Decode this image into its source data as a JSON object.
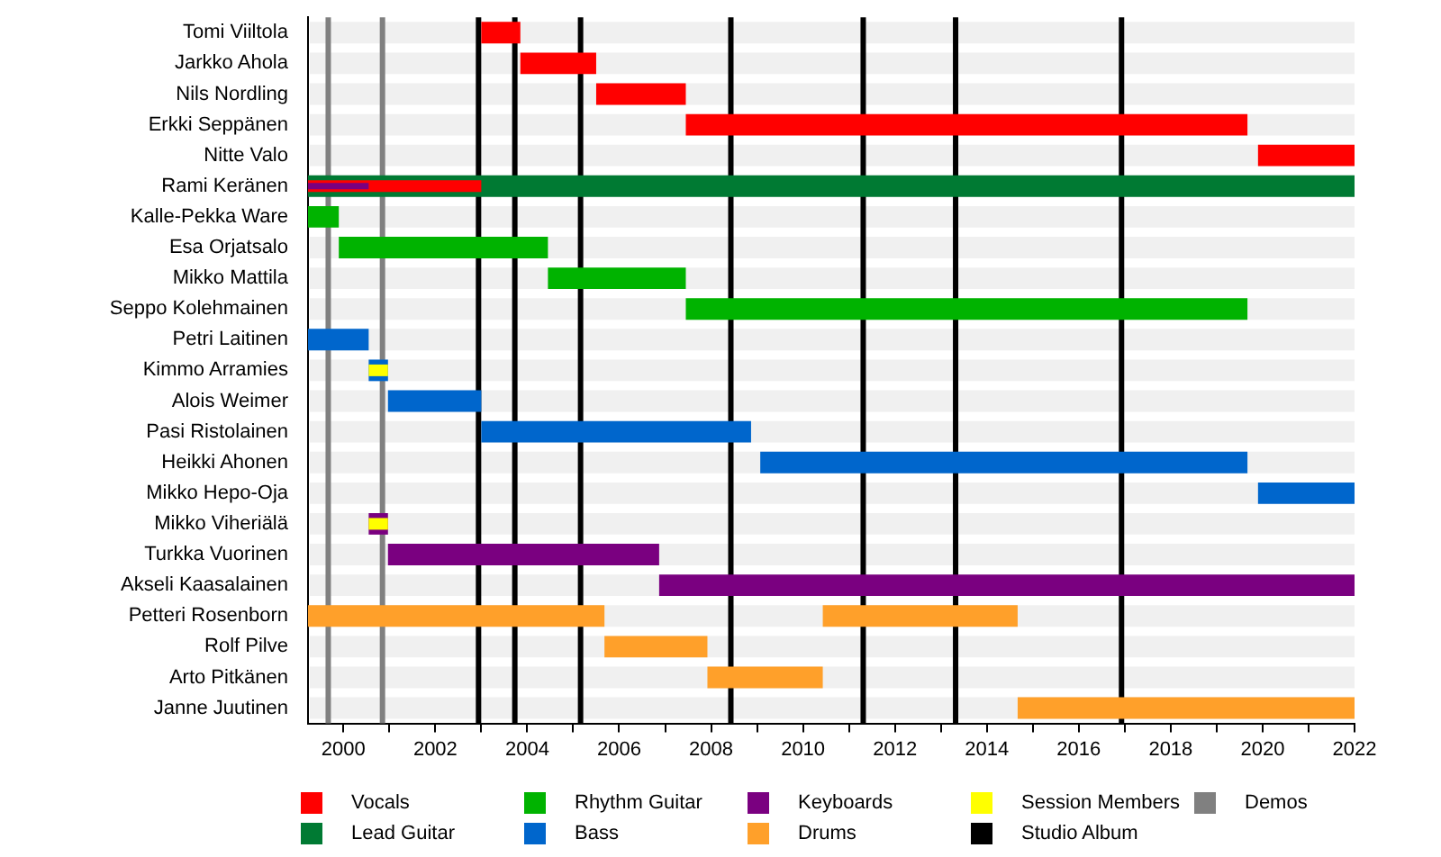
{
  "chart_data": {
    "type": "bar",
    "orientation": "horizontal",
    "legend": "bottom",
    "categories": [
      "Tomi Viiltola",
      "Jarkko Ahola",
      "Nils Nordling",
      "Erkki Seppänen",
      "Nitte Valo",
      "Rami Keränen",
      "Kalle-Pekka Ware",
      "Esa Orjatsalo",
      "Mikko Mattila",
      "Seppo Kolehmainen",
      "Petri Laitinen",
      "Kimmo Arramies",
      "Alois Weimer",
      "Pasi Ristolainen",
      "Heikki Ahonen",
      "Mikko Hepo-Oja",
      "Mikko Viheriälä",
      "Turkka Vuorinen",
      "Akseli Kaasalainen",
      "Petteri Rosenborn",
      "Rolf Pilve",
      "Arto Pitkänen",
      "Janne Juutinen"
    ],
    "xlim": [
      1999.23,
      2022
    ],
    "xticks": [
      2000,
      {
        "value": 2001,
        "label": null
      },
      2002,
      {
        "value": 2003,
        "label": null
      },
      2004,
      {
        "value": 2005,
        "label": null
      },
      2006,
      {
        "value": 2007,
        "label": null
      },
      2008,
      {
        "value": 2009,
        "label": null
      },
      2010,
      {
        "value": 2011,
        "label": null
      },
      2012,
      {
        "value": 2013,
        "label": null
      },
      2014,
      {
        "value": 2015,
        "label": null
      },
      2016,
      {
        "value": 2017,
        "label": null
      },
      2018,
      {
        "value": 2019,
        "label": null
      },
      2020,
      {
        "value": 2021,
        "label": null
      },
      2022
    ],
    "series": [
      {
        "name": "Vocals",
        "color": "#ff0000",
        "values": [
          0.85,
          1.65,
          1.95,
          12.22,
          2.1,
          3.77,
          null,
          null,
          null,
          null,
          null,
          null,
          null,
          null,
          null,
          null,
          null,
          null,
          null,
          null,
          null,
          null,
          null
        ],
        "base": [
          2003.0,
          2003.85,
          2005.5,
          2007.45,
          2019.9,
          1999.23,
          null,
          null,
          null,
          null,
          null,
          null,
          null,
          null,
          null,
          null,
          null,
          null,
          null,
          null,
          null,
          null,
          null
        ]
      },
      {
        "name": "Lead Guitar",
        "color": "#007a33",
        "values": [
          null,
          null,
          null,
          null,
          null,
          22.77,
          null,
          null,
          null,
          null,
          null,
          null,
          null,
          null,
          null,
          null,
          null,
          null,
          null,
          null,
          null,
          null,
          null
        ],
        "base": [
          null,
          null,
          null,
          null,
          null,
          1999.23,
          null,
          null,
          null,
          null,
          null,
          null,
          null,
          null,
          null,
          null,
          null,
          null,
          null,
          null,
          null,
          null,
          null
        ]
      },
      {
        "name": "Rhythm Guitar",
        "color": "#00b300",
        "values": [
          null,
          null,
          null,
          null,
          null,
          null,
          0.67,
          4.55,
          3.0,
          12.22,
          null,
          null,
          null,
          null,
          null,
          null,
          null,
          null,
          null,
          null,
          null,
          null,
          null
        ],
        "base": [
          null,
          null,
          null,
          null,
          null,
          null,
          1999.23,
          1999.9,
          2004.45,
          2007.45,
          null,
          null,
          null,
          null,
          null,
          null,
          null,
          null,
          null,
          null,
          null,
          null,
          null
        ]
      },
      {
        "name": "Bass",
        "color": "#0066cc",
        "values": [
          null,
          null,
          null,
          null,
          null,
          null,
          null,
          null,
          null,
          null,
          1.32,
          0.42,
          2.03,
          5.87,
          10.6,
          2.1,
          null,
          null,
          null,
          null,
          null,
          null,
          null
        ],
        "base": [
          null,
          null,
          null,
          null,
          null,
          null,
          null,
          null,
          null,
          null,
          1999.23,
          2000.55,
          2000.97,
          2003.0,
          2009.07,
          2019.9,
          null,
          null,
          null,
          null,
          null,
          null,
          null
        ]
      },
      {
        "name": "Keyboards",
        "color": "#7a0080",
        "values": [
          null,
          null,
          null,
          null,
          null,
          1.32,
          null,
          null,
          null,
          null,
          null,
          null,
          null,
          null,
          null,
          null,
          0.42,
          5.9,
          15.13,
          null,
          null,
          null,
          null
        ],
        "base": [
          null,
          null,
          null,
          null,
          null,
          1999.23,
          null,
          null,
          null,
          null,
          null,
          null,
          null,
          null,
          null,
          null,
          2000.55,
          2000.97,
          2006.87,
          null,
          null,
          null,
          null
        ]
      },
      {
        "name": "Drums",
        "color": "#ffa02a",
        "values": [
          null,
          null,
          null,
          null,
          null,
          null,
          null,
          null,
          null,
          null,
          null,
          null,
          null,
          null,
          null,
          null,
          null,
          null,
          null,
          6.45,
          2.24,
          2.51,
          7.33
        ],
        "base": [
          null,
          null,
          null,
          null,
          null,
          null,
          null,
          null,
          null,
          null,
          null,
          null,
          null,
          null,
          null,
          null,
          null,
          null,
          null,
          1999.23,
          2005.68,
          2007.92,
          2014.67
        ]
      },
      {
        "color": "#ffa02a",
        "values": [
          null,
          null,
          null,
          null,
          null,
          null,
          null,
          null,
          null,
          null,
          null,
          null,
          null,
          null,
          null,
          null,
          null,
          null,
          null,
          4.24,
          null,
          null,
          null
        ],
        "base": [
          null,
          null,
          null,
          null,
          null,
          null,
          null,
          null,
          null,
          null,
          null,
          null,
          null,
          null,
          null,
          null,
          null,
          null,
          null,
          2010.43,
          null,
          null,
          null
        ]
      },
      {
        "name": "Session Members",
        "color": "#ffff00",
        "values": [
          null,
          null,
          null,
          null,
          null,
          null,
          null,
          null,
          null,
          null,
          null,
          0.42,
          null,
          null,
          null,
          null,
          0.42,
          null,
          null,
          null,
          null,
          null,
          null
        ],
        "base": [
          null,
          null,
          null,
          null,
          null,
          null,
          null,
          null,
          null,
          null,
          null,
          2000.55,
          null,
          null,
          null,
          null,
          2000.55,
          null,
          null,
          null,
          null,
          null,
          null
        ]
      }
    ],
    "ref_lines": [
      {
        "axis": "x",
        "value": 2002.94,
        "label": "Studio Album",
        "color": "#000000"
      },
      {
        "axis": "x",
        "value": 2003.73,
        "color": "#000000"
      },
      {
        "axis": "x",
        "value": 2005.16,
        "color": "#000000"
      },
      {
        "axis": "x",
        "value": 2008.43,
        "color": "#000000"
      },
      {
        "axis": "x",
        "value": 2011.31,
        "color": "#000000"
      },
      {
        "axis": "x",
        "value": 2013.32,
        "color": "#000000"
      },
      {
        "axis": "x",
        "value": 2016.93,
        "color": "#000000"
      },
      {
        "axis": "x",
        "value": 1999.67,
        "label": "Demos",
        "color": "#808080"
      },
      {
        "axis": "x",
        "value": 2000.85,
        "color": "#808080"
      }
    ]
  }
}
